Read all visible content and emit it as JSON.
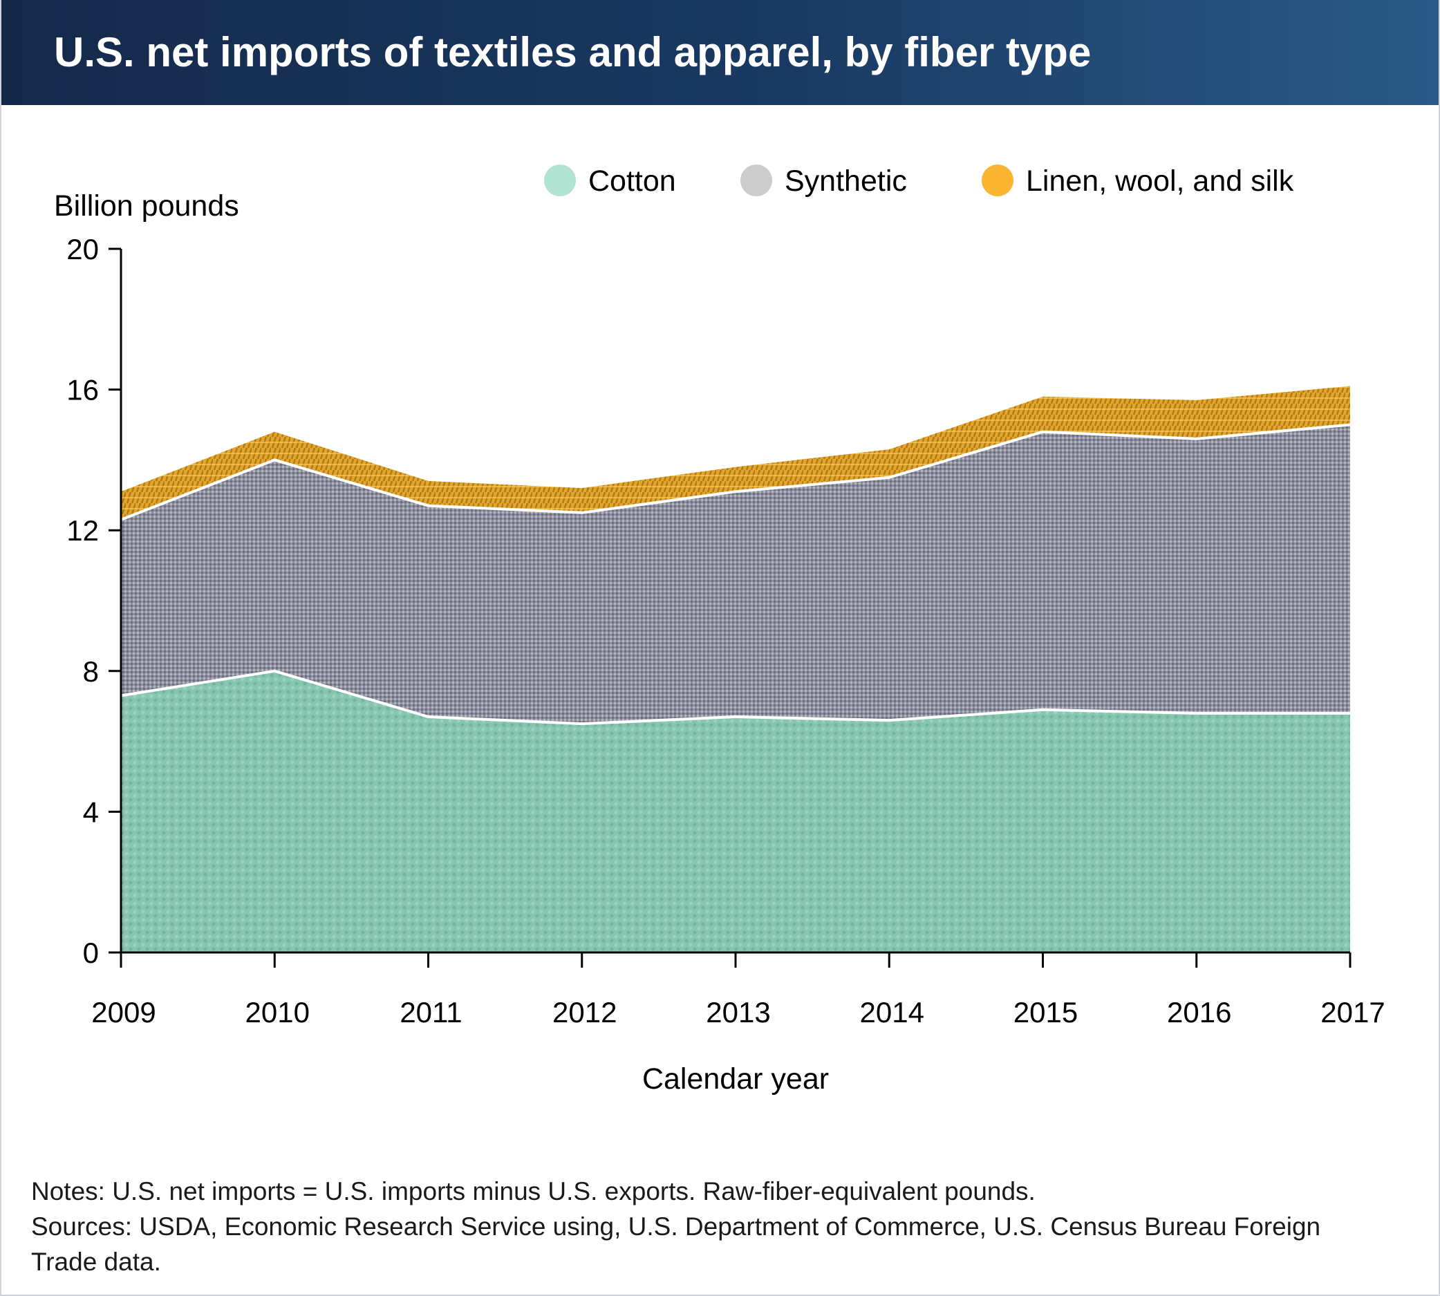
{
  "header": {
    "title": "U.S. net imports of textiles and apparel, by fiber type"
  },
  "colors": {
    "header_bg": "#1a3a63",
    "cotton": "#86c6b0",
    "synthetic": "#8e8f9e",
    "linen_wool_silk": "#e2a62e",
    "legend_cotton": "#b2e4d3",
    "legend_synthetic": "#cccccc",
    "legend_linen_wool_silk": "#fbb532"
  },
  "chart_data": {
    "type": "area",
    "stacked": true,
    "x": [
      2009,
      2010,
      2011,
      2012,
      2013,
      2014,
      2015,
      2016,
      2017
    ],
    "tick_labels": [
      "2009",
      "2010",
      "2011",
      "2012",
      "2013",
      "2014",
      "2015",
      "2016",
      "2017"
    ],
    "series": [
      {
        "name": "Cotton",
        "values": [
          7.3,
          8.0,
          6.7,
          6.5,
          6.7,
          6.6,
          6.9,
          6.8,
          6.8
        ]
      },
      {
        "name": "Synthetic",
        "values": [
          5.0,
          6.0,
          6.0,
          6.0,
          6.4,
          6.9,
          7.9,
          7.8,
          8.2
        ]
      },
      {
        "name": "Linen, wool, and silk",
        "values": [
          0.8,
          0.8,
          0.7,
          0.7,
          0.7,
          0.8,
          1.0,
          1.1,
          1.1
        ]
      }
    ],
    "ylabel": "Billion pounds",
    "xlabel": "Calendar year",
    "ylim": [
      0,
      20
    ],
    "yticks": [
      0,
      4,
      8,
      12,
      16,
      20
    ],
    "legend_position": "top-right",
    "grid": false
  },
  "notes": {
    "line1": "Notes: U.S. net imports = U.S. imports minus U.S. exports. Raw-fiber-equivalent pounds.",
    "line2": "Sources: USDA, Economic Research Service using, U.S. Department of Commerce, U.S. Census Bureau Foreign",
    "line3": "Trade data."
  }
}
